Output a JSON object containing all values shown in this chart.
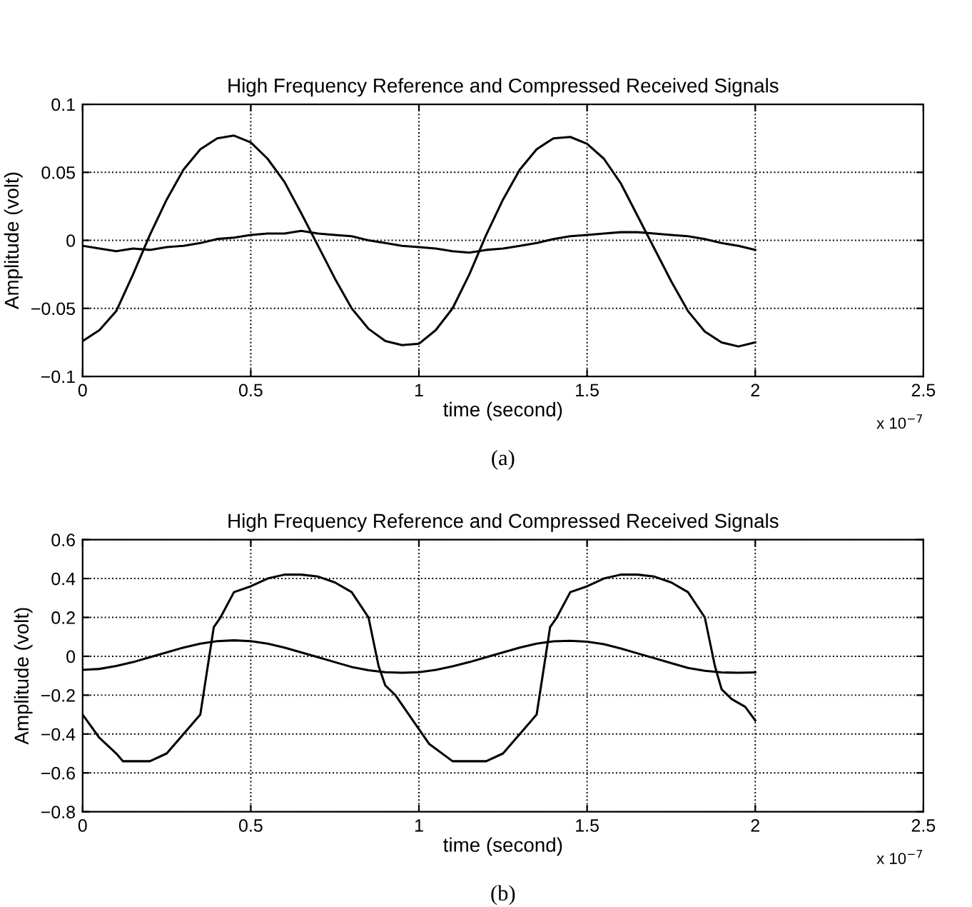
{
  "chart_data": [
    {
      "type": "line",
      "title": "High Frequency Reference and Compressed Received Signals",
      "xlabel": "time (second)",
      "ylabel": "Amplitude (volt)",
      "annotations": [
        "x 10$^{−7}$",
        "(a)"
      ],
      "xlim": [
        0,
        2.5
      ],
      "xticks": [
        0,
        0.5,
        1,
        1.5,
        2,
        2.5
      ],
      "ylim": [
        -0.1,
        0.1
      ],
      "yticks": [
        -0.1,
        -0.05,
        0,
        0.05,
        0.1
      ],
      "grid": true,
      "line_style": "solid",
      "marker": "none",
      "series": [
        {
          "color": "#000000",
          "x": [
            0,
            0.05,
            0.1,
            0.15,
            0.2,
            0.25,
            0.3,
            0.35,
            0.4,
            0.45,
            0.5,
            0.55,
            0.6,
            0.65,
            0.7,
            0.75,
            0.8,
            0.85,
            0.9,
            0.95,
            1.0,
            1.05,
            1.1,
            1.15,
            1.2,
            1.25,
            1.3,
            1.35,
            1.4,
            1.45,
            1.5,
            1.55,
            1.6,
            1.65,
            1.7,
            1.75,
            1.8,
            1.85,
            1.9,
            1.95,
            2.0
          ],
          "values": [
            -0.074,
            -0.066,
            -0.052,
            -0.025,
            0.004,
            0.03,
            0.052,
            0.067,
            0.075,
            0.077,
            0.072,
            0.06,
            0.043,
            0.02,
            -0.004,
            -0.028,
            -0.05,
            -0.065,
            -0.074,
            -0.077,
            -0.076,
            -0.066,
            -0.05,
            -0.025,
            0.004,
            0.03,
            0.052,
            0.067,
            0.075,
            0.076,
            0.071,
            0.06,
            0.042,
            0.018,
            -0.006,
            -0.03,
            -0.052,
            -0.067,
            -0.075,
            -0.078,
            -0.075
          ]
        },
        {
          "color": "#000000",
          "x": [
            0,
            0.05,
            0.1,
            0.15,
            0.2,
            0.25,
            0.3,
            0.35,
            0.4,
            0.45,
            0.5,
            0.55,
            0.6,
            0.65,
            0.7,
            0.75,
            0.8,
            0.85,
            0.9,
            0.95,
            1.0,
            1.05,
            1.1,
            1.15,
            1.2,
            1.25,
            1.3,
            1.35,
            1.4,
            1.45,
            1.5,
            1.55,
            1.6,
            1.65,
            1.7,
            1.75,
            1.8,
            1.85,
            1.9,
            1.95,
            2.0
          ],
          "values": [
            -0.004,
            -0.006,
            -0.008,
            -0.006,
            -0.007,
            -0.005,
            -0.004,
            -0.002,
            0.001,
            0.002,
            0.004,
            0.005,
            0.005,
            0.007,
            0.005,
            0.004,
            0.003,
            0.0,
            -0.002,
            -0.004,
            -0.005,
            -0.006,
            -0.008,
            -0.009,
            -0.007,
            -0.006,
            -0.004,
            -0.002,
            0.001,
            0.003,
            0.004,
            0.005,
            0.006,
            0.006,
            0.005,
            0.004,
            0.003,
            0.001,
            -0.002,
            -0.004,
            -0.007
          ]
        }
      ]
    },
    {
      "type": "line",
      "title": "High Frequency Reference and Compressed Received Signals",
      "xlabel": "time (second)",
      "ylabel": "Amplitude (volt)",
      "annotations": [
        "x 10$^{−7}$",
        "(b)"
      ],
      "xlim": [
        0,
        2.5
      ],
      "xticks": [
        0,
        0.5,
        1,
        1.5,
        2,
        2.5
      ],
      "ylim": [
        -0.8,
        0.6
      ],
      "yticks": [
        -0.8,
        -0.6,
        -0.4,
        -0.2,
        0,
        0.2,
        0.4,
        0.6
      ],
      "grid": true,
      "line_style": "solid",
      "marker": "none",
      "series": [
        {
          "color": "#000000",
          "x": [
            0,
            0.05,
            0.1,
            0.15,
            0.2,
            0.25,
            0.3,
            0.35,
            0.4,
            0.45,
            0.5,
            0.55,
            0.6,
            0.65,
            0.7,
            0.75,
            0.8,
            0.85,
            0.9,
            0.95,
            1.0,
            1.05,
            1.1,
            1.15,
            1.2,
            1.25,
            1.3,
            1.35,
            1.4,
            1.45,
            1.5,
            1.55,
            1.6,
            1.65,
            1.7,
            1.75,
            1.8,
            1.85,
            1.9,
            1.95,
            2.0
          ],
          "values": [
            -0.07,
            -0.065,
            -0.05,
            -0.03,
            -0.005,
            0.02,
            0.045,
            0.065,
            0.078,
            0.082,
            0.078,
            0.065,
            0.045,
            0.02,
            -0.005,
            -0.03,
            -0.055,
            -0.072,
            -0.082,
            -0.085,
            -0.082,
            -0.07,
            -0.052,
            -0.03,
            -0.005,
            0.02,
            0.045,
            0.065,
            0.077,
            0.08,
            0.075,
            0.062,
            0.04,
            0.015,
            -0.01,
            -0.035,
            -0.06,
            -0.075,
            -0.083,
            -0.085,
            -0.083
          ]
        },
        {
          "color": "#000000",
          "x": [
            0,
            0.05,
            0.1,
            0.12,
            0.2,
            0.25,
            0.3,
            0.35,
            0.39,
            0.41,
            0.45,
            0.5,
            0.55,
            0.6,
            0.65,
            0.7,
            0.75,
            0.8,
            0.85,
            0.88,
            0.9,
            0.93,
            0.97,
            1.03,
            1.1,
            1.2,
            1.25,
            1.3,
            1.35,
            1.39,
            1.41,
            1.45,
            1.5,
            1.55,
            1.6,
            1.65,
            1.7,
            1.75,
            1.8,
            1.85,
            1.88,
            1.9,
            1.93,
            1.97,
            2.0
          ],
          "values": [
            -0.3,
            -0.42,
            -0.5,
            -0.54,
            -0.54,
            -0.5,
            -0.4,
            -0.3,
            0.15,
            0.2,
            0.33,
            0.36,
            0.4,
            0.42,
            0.42,
            0.41,
            0.38,
            0.33,
            0.2,
            -0.05,
            -0.15,
            -0.2,
            -0.3,
            -0.45,
            -0.54,
            -0.54,
            -0.5,
            -0.4,
            -0.3,
            0.15,
            0.2,
            0.33,
            0.36,
            0.4,
            0.42,
            0.42,
            0.41,
            0.38,
            0.33,
            0.2,
            -0.05,
            -0.17,
            -0.22,
            -0.26,
            -0.33
          ]
        }
      ]
    }
  ]
}
